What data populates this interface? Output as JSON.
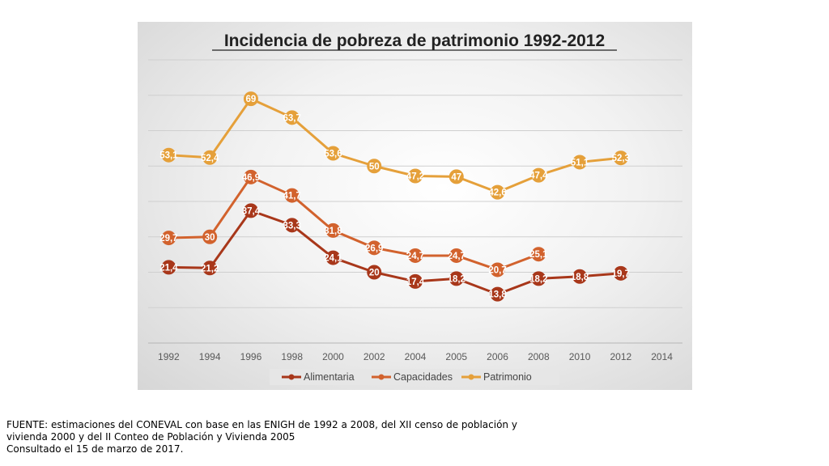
{
  "chart_data": {
    "type": "line",
    "title": "Incidencia de pobreza de patrimonio 1992-2012",
    "categories": [
      "1992",
      "1994",
      "1996",
      "1998",
      "2000",
      "2002",
      "2004",
      "2005",
      "2006",
      "2008",
      "2010",
      "2012",
      "2014"
    ],
    "ylim": [
      0,
      80
    ],
    "grid": true,
    "legend_position": "bottom",
    "series": [
      {
        "name": "Alimentaria",
        "color": "#a8371a",
        "values": [
          21.4,
          21.2,
          37.4,
          33.3,
          24.1,
          20,
          17.4,
          18.2,
          13.8,
          18.2,
          18.8,
          19.7,
          null
        ],
        "labels": [
          "21,4",
          "21,2",
          "37,4",
          "33,3",
          "24,1",
          "20",
          "17,4",
          "18,2",
          "13,8",
          "18,2",
          "18,8",
          "19,7",
          null
        ]
      },
      {
        "name": "Capacidades",
        "color": "#d2622d",
        "values": [
          29.7,
          30,
          46.9,
          41.7,
          31.8,
          26.9,
          24.7,
          24.7,
          20.7,
          25.1,
          null,
          null,
          null
        ],
        "labels": [
          "29,7",
          "30",
          "46,9",
          "41,7",
          "31,8",
          "26,9",
          "24,7",
          "24,7",
          "20,7",
          "25,1",
          null,
          null,
          null
        ]
      },
      {
        "name": "Patrimonio",
        "color": "#e5a03a",
        "values": [
          53.1,
          52.4,
          69,
          63.7,
          53.6,
          50,
          47.2,
          47,
          42.6,
          47.4,
          51.1,
          52.3,
          null
        ],
        "labels": [
          "53,1",
          "52,4",
          "69",
          "63,7",
          "53,6",
          "50",
          "47,2",
          "47",
          "42,6",
          "47,4",
          "51,1",
          "52,3",
          null
        ]
      }
    ]
  },
  "footer": {
    "line1": "FUENTE: estimaciones del CONEVAL con base en las ENIGH de 1992 a 2008, del XII censo de población y",
    "line2": "vivienda 2000 y del II Conteo de Población y Vivienda 2005",
    "line3": "Consultado el 15 de marzo de 2017."
  }
}
